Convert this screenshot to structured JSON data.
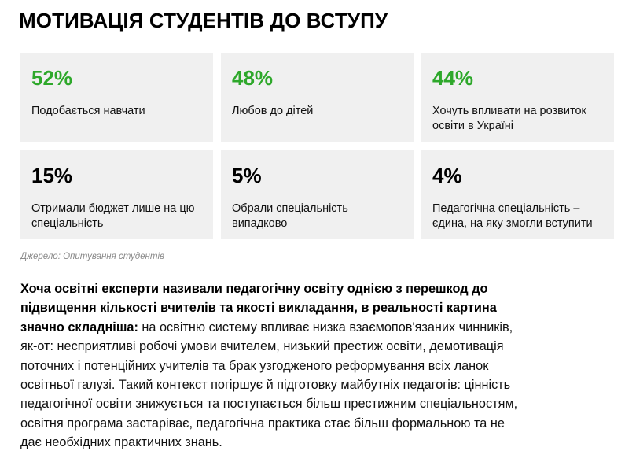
{
  "title": "МОТИВАЦІЯ СТУДЕНТІВ ДО ВСТУПУ",
  "stats": [
    {
      "value": "52%",
      "label": "Подобається навчати",
      "accent": "#2ea82b"
    },
    {
      "value": "48%",
      "label": "Любов до дітей",
      "accent": "#2ea82b"
    },
    {
      "value": "44%",
      "label": "Хочуть впливати на розвиток освіти в Україні",
      "accent": "#2ea82b"
    },
    {
      "value": "15%",
      "label": "Отримали бюджет лише на цю спеціальність",
      "accent": "#000000"
    },
    {
      "value": "5%",
      "label": "Обрали спеціальність випадково",
      "accent": "#000000"
    },
    {
      "value": "4%",
      "label": "Педагогічна спеціальність – єдина, на яку змогли вступити",
      "accent": "#000000"
    }
  ],
  "source": "Джерело: Опитування студентів",
  "article": {
    "lead": "Хоча освітні експерти називали педагогічну освіту однією з перешкод до підвищення кількості вчителів та якості викладання, в реальності картина значно складніша:",
    "body": " на освітню систему впливає низка взаємопов'язаних чинників, як-от: несприятливі робочі умови вчителем, низький престиж освіти, демотивація поточних і потенційних учителів та брак узгодженого реформування всіх ланок освітньої галузі. Такий контекст погіршує й підготовку майбутніх педагогів: цінність педагогічної освіти знижується та поступається більш престижним спеціальностям, освітня програма застаріває, педагогічна практика стає більш формальною та не дає необхідних практичних знань."
  }
}
